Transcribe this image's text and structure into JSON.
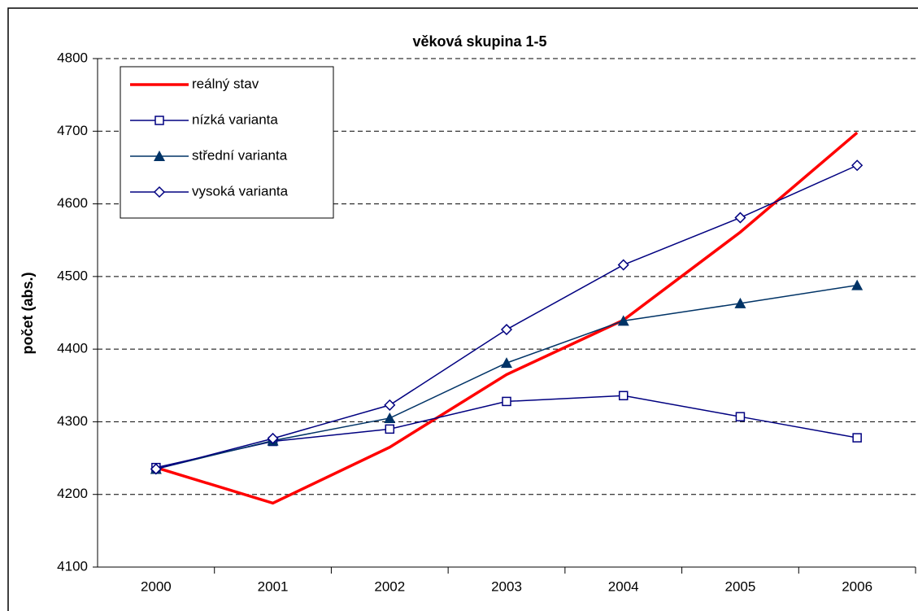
{
  "chart_data": {
    "type": "line",
    "title": "věková skupina 1-5",
    "y_label": "počet (abs.)",
    "categories": [
      "2000",
      "2001",
      "2002",
      "2003",
      "2004",
      "2005",
      "2006"
    ],
    "series": [
      {
        "name": "reálný stav",
        "color": "#ff0000",
        "marker": "none",
        "values": [
          4237,
          4188,
          4265,
          4365,
          4440,
          4561,
          4698
        ]
      },
      {
        "name": "nízká varianta",
        "color": "#000080",
        "marker": "square",
        "values": [
          4237,
          4273,
          4290,
          4328,
          4336,
          4307,
          4278
        ]
      },
      {
        "name": "střední varianta",
        "color": "#003366",
        "marker": "triangle",
        "values": [
          4235,
          4274,
          4305,
          4381,
          4439,
          4463,
          4488
        ]
      },
      {
        "name": "vysoká varianta",
        "color": "#000080",
        "marker": "diamond",
        "values": [
          4235,
          4277,
          4323,
          4427,
          4516,
          4581,
          4653
        ]
      }
    ],
    "ylim": [
      4100,
      4800
    ],
    "yticks": [
      4100,
      4200,
      4300,
      4400,
      4500,
      4600,
      4700,
      4800
    ],
    "grid": true,
    "legend": "upper left"
  }
}
